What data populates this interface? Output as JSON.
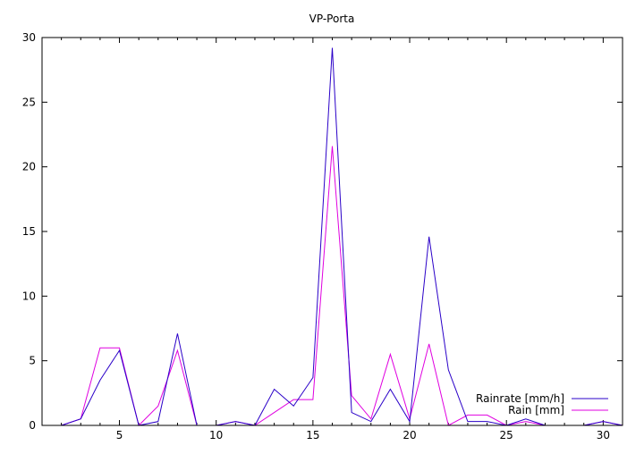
{
  "chart_data": {
    "type": "line",
    "title": "VP-Porta",
    "xlabel": "",
    "ylabel": "",
    "xlim": [
      1,
      31
    ],
    "ylim": [
      0,
      30
    ],
    "x_ticks": [
      5,
      10,
      15,
      20,
      25,
      30
    ],
    "y_ticks": [
      0,
      5,
      10,
      15,
      20,
      25,
      30
    ],
    "grid": false,
    "legend_position": "bottom-right",
    "x": [
      1,
      2,
      3,
      4,
      5,
      6,
      7,
      8,
      9,
      10,
      11,
      12,
      13,
      14,
      15,
      16,
      17,
      18,
      19,
      20,
      21,
      22,
      23,
      24,
      25,
      26,
      27,
      28,
      29,
      30,
      31
    ],
    "series": [
      {
        "name": "Rainrate [mm/h]",
        "color": "#2a00c8",
        "values": [
          0,
          0,
          0.5,
          3.5,
          5.8,
          0,
          0.3,
          7.1,
          0,
          0,
          0.3,
          0,
          2.8,
          1.5,
          3.7,
          29.2,
          1,
          0.3,
          2.8,
          0.3,
          14.6,
          4.3,
          0.3,
          0.3,
          0,
          0.5,
          0,
          0,
          0,
          0.3,
          0
        ]
      },
      {
        "name": "Rain [mm]",
        "color": "#e000e0",
        "values": [
          0,
          0,
          0.5,
          6,
          6,
          0,
          1.5,
          5.8,
          0,
          0,
          0.3,
          0,
          1,
          2,
          2,
          21.6,
          2.3,
          0.5,
          5.5,
          0.5,
          6.3,
          0,
          0.8,
          0.8,
          0,
          0.3,
          0,
          0,
          0,
          0.3,
          0
        ]
      }
    ]
  }
}
